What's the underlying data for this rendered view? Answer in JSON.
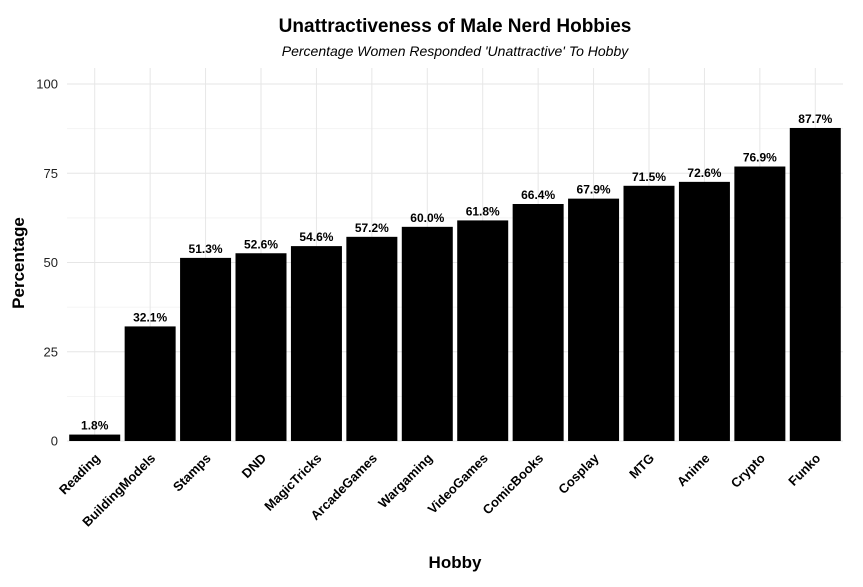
{
  "chart_data": {
    "type": "bar",
    "title": "Unattractiveness of Male Nerd Hobbies",
    "subtitle": "Percentage Women Responded 'Unattractive' To Hobby",
    "xlabel": "Hobby",
    "ylabel": "Percentage",
    "ylim": [
      0,
      100
    ],
    "yticks": [
      0,
      25,
      50,
      75,
      100
    ],
    "grid": true,
    "legend": "none",
    "bar_color": "#000000",
    "categories": [
      "Reading",
      "BuildingModels",
      "Stamps",
      "DND",
      "MagicTricks",
      "ArcadeGames",
      "Wargaming",
      "VideoGames",
      "ComicBooks",
      "Cosplay",
      "MTG",
      "Anime",
      "Crypto",
      "Funko"
    ],
    "values": [
      1.8,
      32.1,
      51.3,
      52.6,
      54.6,
      57.2,
      60.0,
      61.8,
      66.4,
      67.9,
      71.5,
      72.6,
      76.9,
      87.7
    ],
    "data_labels": [
      "1.8%",
      "32.1%",
      "51.3%",
      "52.6%",
      "54.6%",
      "57.2%",
      "60.0%",
      "61.8%",
      "66.4%",
      "67.9%",
      "71.5%",
      "72.6%",
      "76.9%",
      "87.7%"
    ]
  }
}
